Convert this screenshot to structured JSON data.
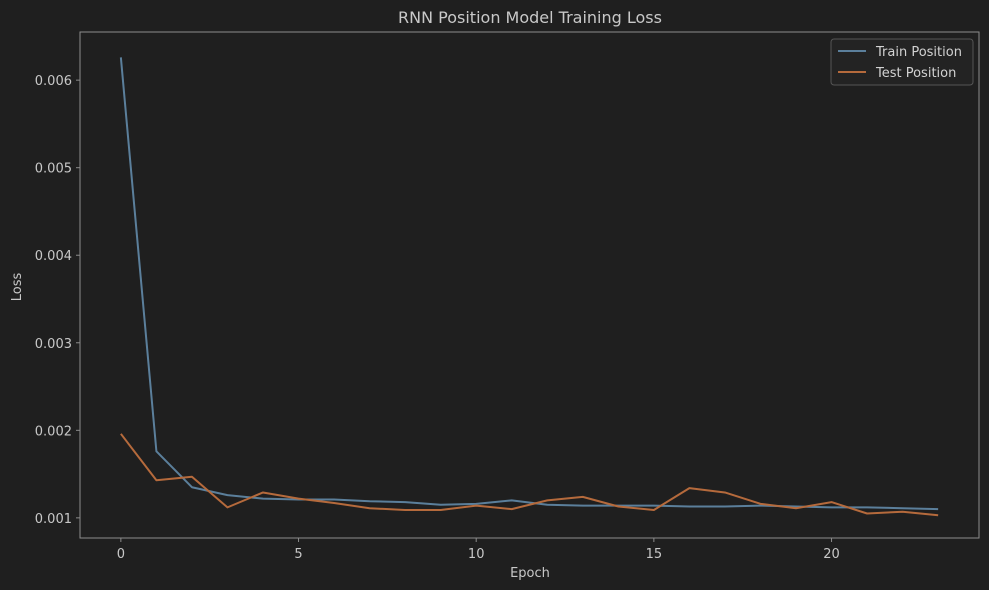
{
  "chart_data": {
    "type": "line",
    "title": "RNN Position Model Training Loss",
    "xlabel": "Epoch",
    "ylabel": "Loss",
    "xlim": [
      -1.15,
      24.15
    ],
    "ylim": [
      0.00077,
      0.00655
    ],
    "xticks": [
      0,
      5,
      10,
      15,
      20
    ],
    "yticks": [
      0.001,
      0.002,
      0.003,
      0.004,
      0.005,
      0.006
    ],
    "ytick_labels": [
      "0.001",
      "0.002",
      "0.003",
      "0.004",
      "0.005",
      "0.006"
    ],
    "grid": false,
    "legend_position": "top-right",
    "x": [
      0,
      1,
      2,
      3,
      4,
      5,
      6,
      7,
      8,
      9,
      10,
      11,
      12,
      13,
      14,
      15,
      16,
      17,
      18,
      19,
      20,
      21,
      22,
      23
    ],
    "series": [
      {
        "name": "Train Position",
        "color": "#5b7f9b",
        "values": [
          0.00626,
          0.00176,
          0.00135,
          0.00126,
          0.00122,
          0.00121,
          0.00121,
          0.00119,
          0.00118,
          0.00115,
          0.00116,
          0.0012,
          0.00115,
          0.00114,
          0.00114,
          0.00114,
          0.00113,
          0.00113,
          0.00114,
          0.00113,
          0.00112,
          0.00112,
          0.00111,
          0.0011
        ]
      },
      {
        "name": "Test Position",
        "color": "#b56a3c",
        "values": [
          0.00196,
          0.00143,
          0.00147,
          0.00112,
          0.00129,
          0.00122,
          0.00117,
          0.00111,
          0.00109,
          0.00109,
          0.00114,
          0.0011,
          0.0012,
          0.00124,
          0.00113,
          0.00109,
          0.00134,
          0.00129,
          0.00116,
          0.00111,
          0.00118,
          0.00105,
          0.00107,
          0.00103
        ]
      }
    ]
  }
}
